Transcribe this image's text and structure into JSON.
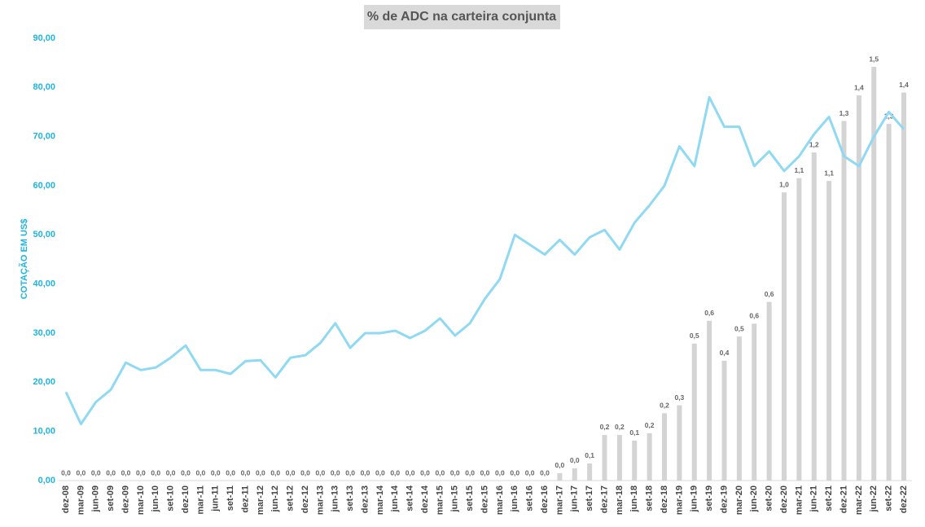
{
  "chart_data": {
    "type": "combo",
    "title": "% de ADC na carteira conjunta",
    "y_label": "COTAÇÃO EM US$",
    "categories": [
      "dez-08",
      "mar-09",
      "jun-09",
      "set-09",
      "dez-09",
      "mar-10",
      "jun-10",
      "set-10",
      "dez-10",
      "mar-11",
      "jun-11",
      "set-11",
      "dez-11",
      "mar-12",
      "jun-12",
      "set-12",
      "dez-12",
      "mar-13",
      "jun-13",
      "set-13",
      "dez-13",
      "mar-14",
      "jun-14",
      "set-14",
      "dez-14",
      "mar-15",
      "jun-15",
      "set-15",
      "dez-15",
      "mar-16",
      "jun-16",
      "set-16",
      "dez-16",
      "mar-17",
      "jun-17",
      "set-17",
      "dez-17",
      "mar-18",
      "jun-18",
      "set-18",
      "dez-18",
      "mar-19",
      "jun-19",
      "set-19",
      "dez-19",
      "mar-20",
      "jun-20",
      "set-20",
      "dez-20",
      "mar-21",
      "jun-21",
      "set-21",
      "dez-21",
      "mar-22",
      "jun-22",
      "set-22",
      "dez-22"
    ],
    "series": [
      {
        "type": "bar",
        "axis": "y2",
        "color": "#d4d4d4",
        "values": [
          0,
          0,
          0,
          0,
          0,
          0,
          0,
          0,
          0,
          0,
          0,
          0,
          0,
          0,
          0,
          0,
          0,
          0,
          0,
          0,
          0,
          0,
          0,
          0,
          0,
          0,
          0,
          0,
          0,
          0,
          0,
          0,
          0,
          0.026,
          0.043,
          0.06,
          0.16,
          0.16,
          0.14,
          0.166,
          0.236,
          0.264,
          0.48,
          0.56,
          0.42,
          0.505,
          0.55,
          0.626,
          1.01,
          1.06,
          1.15,
          1.05,
          1.26,
          1.35,
          1.45,
          1.25,
          1.36
        ],
        "value_labels": [
          "0,0",
          "0,0",
          "0,0",
          "0,0",
          "0,0",
          "0,0",
          "0,0",
          "0,0",
          "0,0",
          "0,0",
          "0,0",
          "0,0",
          "0,0",
          "0,0",
          "0,0",
          "0,0",
          "0,0",
          "0,0",
          "0,0",
          "0,0",
          "0,0",
          "0,0",
          "0,0",
          "0,0",
          "0,0",
          "0,0",
          "0,0",
          "0,0",
          "0,0",
          "0,0",
          "0,0",
          "0,0",
          "0,0",
          "0,0",
          "0,0",
          "0,1",
          "0,2",
          "0,2",
          "0,1",
          "0,2",
          "0,2",
          "0,3",
          "0,5",
          "0,6",
          "0,4",
          "0,5",
          "0,6",
          "0,6",
          "1,0",
          "1,1",
          "1,2",
          "1,1",
          "1,3",
          "1,4",
          "1,5",
          "1,3",
          "1,4"
        ]
      },
      {
        "type": "line",
        "axis": "y",
        "color": "#8fd9f2",
        "values": [
          18,
          11.5,
          16,
          18.5,
          24,
          22.5,
          23,
          25,
          27.5,
          22.5,
          22.5,
          21.7,
          24.3,
          24.5,
          21,
          25,
          25.5,
          28,
          32,
          27,
          30,
          30,
          30.5,
          29,
          30.5,
          33,
          29.5,
          32,
          37,
          41,
          50,
          48,
          46,
          49,
          46,
          49.5,
          51,
          47,
          52.5,
          56,
          60,
          68,
          64,
          78,
          72,
          72,
          64,
          67,
          63,
          66,
          70.5,
          74,
          66,
          64,
          70,
          75,
          71.5
        ]
      }
    ],
    "ylim": [
      0,
      90
    ],
    "yticks": [
      {
        "value": 0,
        "label": "0,00"
      },
      {
        "value": 10,
        "label": "10,00"
      },
      {
        "value": 20,
        "label": "20,00"
      },
      {
        "value": 30,
        "label": "30,00"
      },
      {
        "value": 40,
        "label": "40,00"
      },
      {
        "value": 50,
        "label": "50,00"
      },
      {
        "value": 60,
        "label": "60,00"
      },
      {
        "value": 70,
        "label": "70,00"
      },
      {
        "value": 80,
        "label": "80,00"
      },
      {
        "value": 90,
        "label": "90,00"
      }
    ],
    "y2lim": [
      0,
      1.55
    ]
  }
}
